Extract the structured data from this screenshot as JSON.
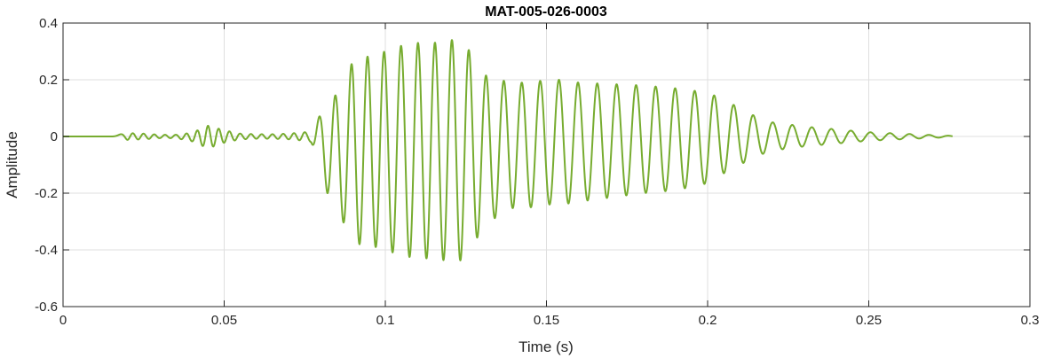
{
  "chart_data": {
    "type": "line",
    "title": "MAT-005-026-0003",
    "xlabel": "Time (s)",
    "ylabel": "Amplitude",
    "xlim": [
      0,
      0.3
    ],
    "ylim": [
      -0.6,
      0.4
    ],
    "x_ticks": [
      0,
      0.05,
      0.1,
      0.15,
      0.2,
      0.25,
      0.3
    ],
    "x_tick_labels": [
      "0",
      "0.05",
      "0.1",
      "0.15",
      "0.2",
      "0.25",
      "0.3"
    ],
    "y_ticks": [
      -0.6,
      -0.4,
      -0.2,
      0,
      0.2,
      0.4
    ],
    "y_tick_labels": [
      "-0.6",
      "-0.4",
      "-0.2",
      "0",
      "0.2",
      "0.4"
    ],
    "grid": true,
    "legend": "none",
    "series": [
      {
        "color": "#77ac30",
        "x": [
          0,
          0.015,
          0.02,
          0.025,
          0.03,
          0.035,
          0.04,
          0.045,
          0.05,
          0.055,
          0.06,
          0.065,
          0.07,
          0.075,
          0.077,
          0.08,
          0.082,
          0.085,
          0.088,
          0.09,
          0.092,
          0.094,
          0.097,
          0.1,
          0.105,
          0.11,
          0.115,
          0.12,
          0.123,
          0.125,
          0.128,
          0.13,
          0.135,
          0.14,
          0.145,
          0.15,
          0.155,
          0.16,
          0.17,
          0.18,
          0.19,
          0.2,
          0.205,
          0.21,
          0.215,
          0.22,
          0.23,
          0.24,
          0.25,
          0.26,
          0.27,
          0.276
        ],
        "envelope": [
          0.001,
          0.002,
          0.012,
          0.01,
          0.006,
          0.006,
          0.015,
          0.04,
          0.022,
          0.01,
          0.008,
          0.008,
          0.01,
          0.015,
          0.02,
          0.1,
          0.16,
          0.2,
          0.27,
          0.32,
          0.33,
          0.33,
          0.34,
          0.35,
          0.37,
          0.38,
          0.38,
          0.39,
          0.39,
          0.37,
          0.32,
          0.27,
          0.24,
          0.22,
          0.22,
          0.22,
          0.22,
          0.21,
          0.2,
          0.19,
          0.18,
          0.16,
          0.13,
          0.1,
          0.07,
          0.05,
          0.035,
          0.025,
          0.015,
          0.01,
          0.005,
          0.002
        ],
        "offset": [
          0,
          0,
          0,
          0,
          0,
          0,
          -0.002,
          -0.002,
          0,
          0,
          0,
          0,
          0,
          0,
          0,
          -0.02,
          -0.04,
          -0.05,
          -0.06,
          -0.05,
          -0.05,
          -0.05,
          -0.05,
          -0.05,
          -0.05,
          -0.05,
          -0.05,
          -0.05,
          -0.05,
          -0.05,
          -0.05,
          -0.05,
          -0.04,
          -0.03,
          -0.03,
          -0.02,
          -0.02,
          -0.02,
          -0.015,
          -0.01,
          -0.01,
          -0.005,
          0,
          0,
          0,
          0,
          0,
          0,
          0,
          0,
          0,
          0
        ],
        "frequency_hz": [
          0,
          0,
          300,
          300,
          300,
          300,
          300,
          300,
          300,
          300,
          300,
          300,
          300,
          300,
          200,
          200,
          200,
          200,
          200,
          200,
          200,
          200,
          195,
          190,
          190,
          190,
          190,
          190,
          190,
          190,
          190,
          185,
          180,
          180,
          175,
          172,
          170,
          168,
          166,
          165,
          165,
          165,
          165,
          165,
          165,
          165,
          165,
          165,
          165,
          165,
          165,
          165
        ]
      }
    ]
  }
}
